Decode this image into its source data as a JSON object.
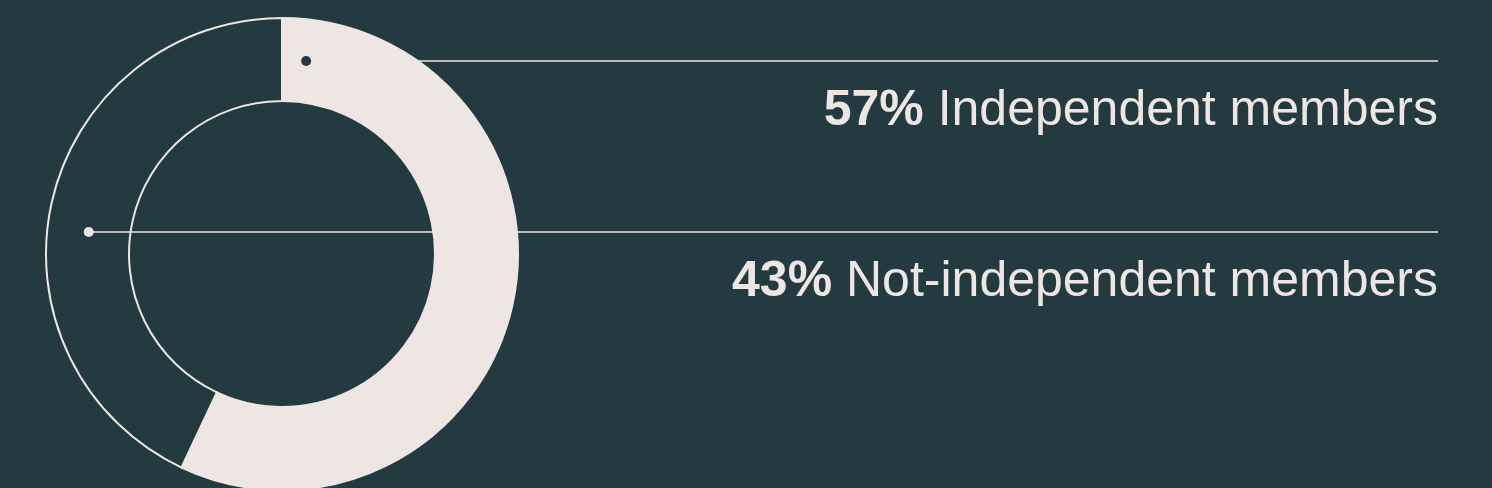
{
  "chart_data": {
    "type": "donut",
    "categories": [
      "Independent members",
      "Not-independent members"
    ],
    "values": [
      57,
      43
    ],
    "colors": [
      "#ede6e2",
      "#233a40"
    ],
    "value_labels": [
      "57%",
      "43%"
    ]
  }
}
